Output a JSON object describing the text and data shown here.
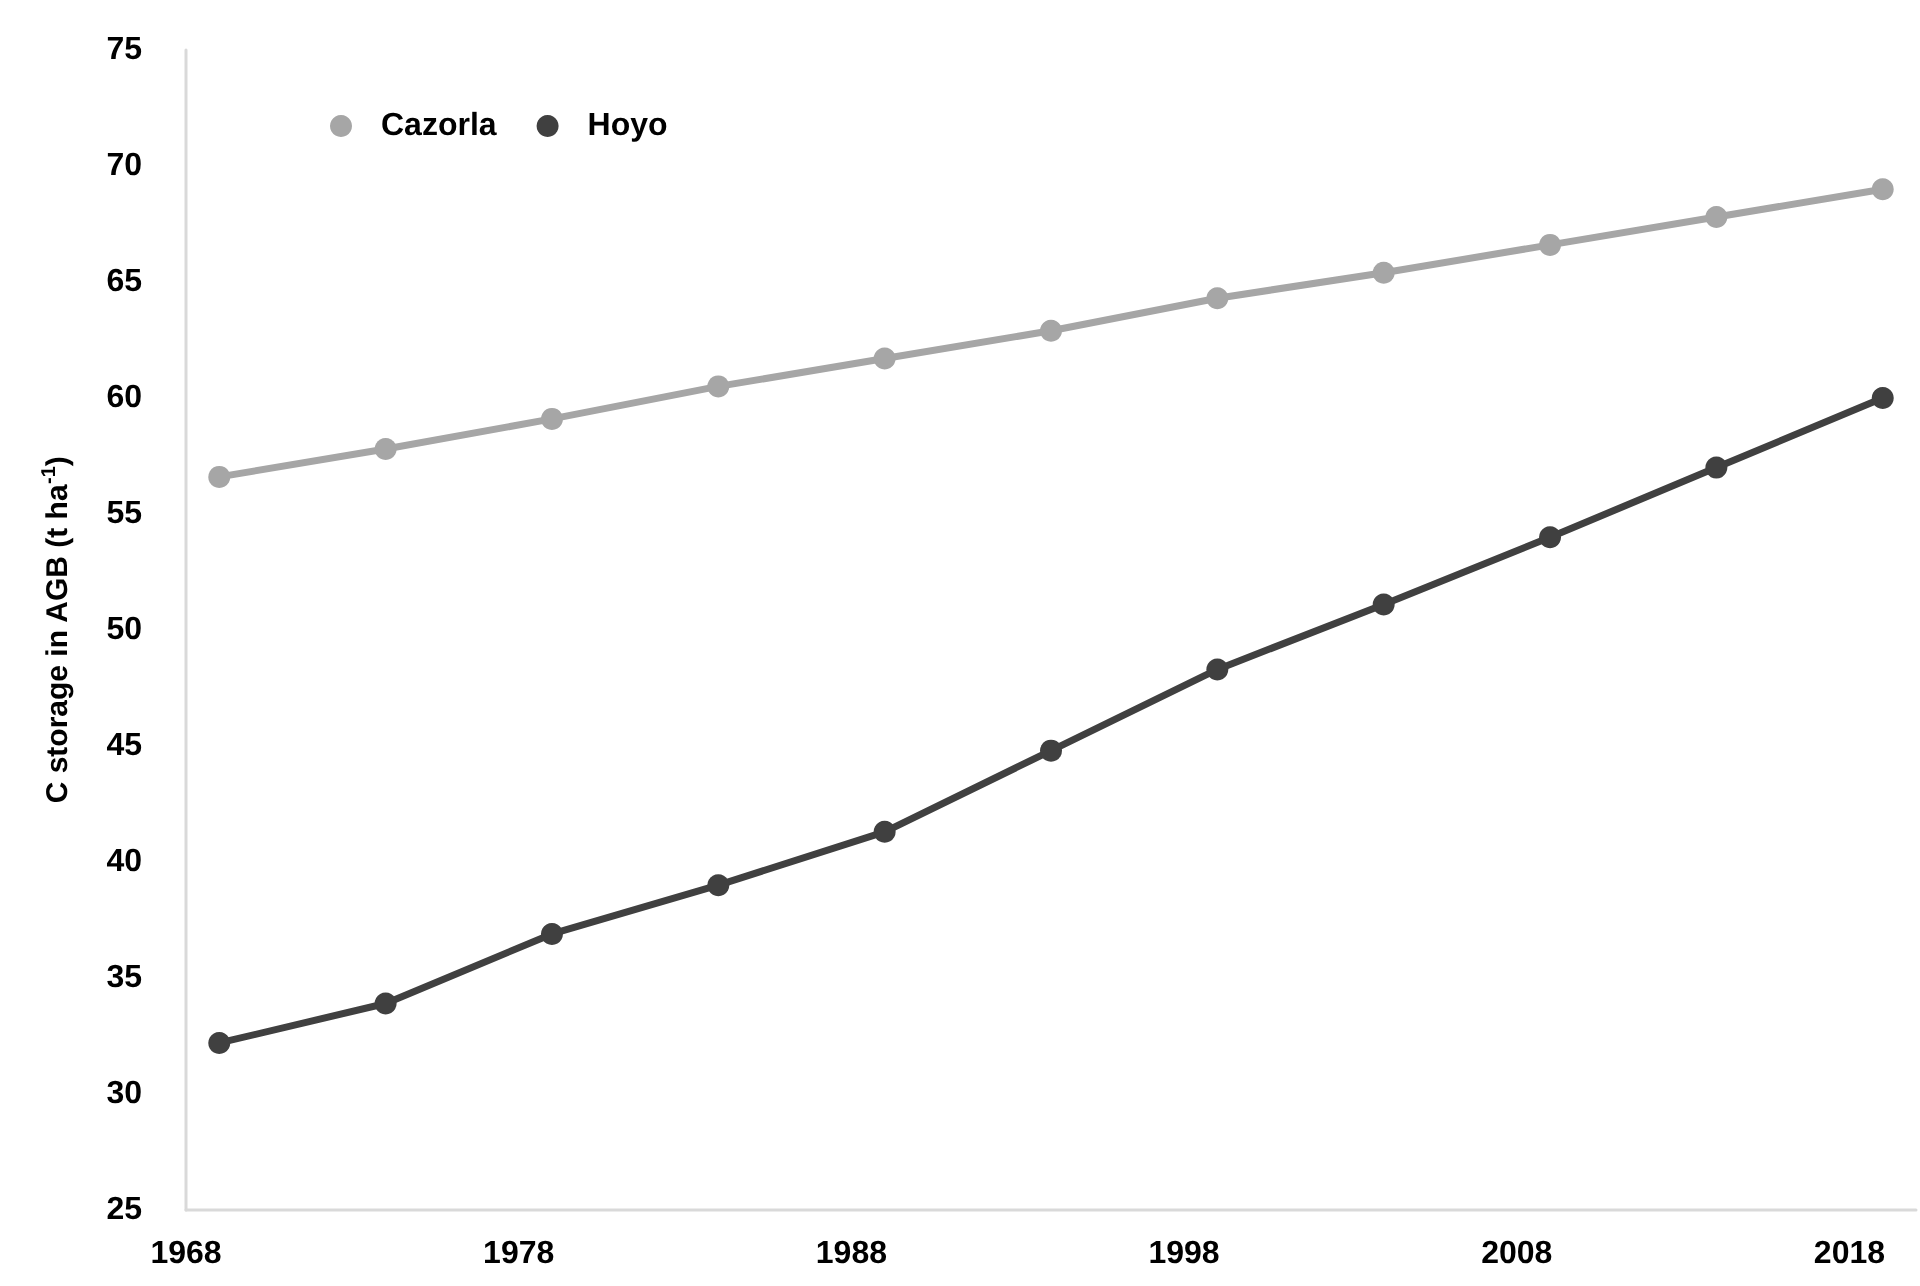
{
  "chart_data": {
    "type": "line",
    "ylabel": "C storage in AGB (t ha$^{-1}$)",
    "x": [
      1969,
      1974,
      1979,
      1984,
      1989,
      1994,
      1999,
      2004,
      2009,
      2014,
      2019
    ],
    "series": [
      {
        "name": "Cazorla",
        "color": "#a6a6a6",
        "values": [
          56.6,
          57.8,
          59.1,
          60.5,
          61.7,
          62.9,
          64.3,
          65.4,
          66.6,
          67.8,
          69.0
        ]
      },
      {
        "name": "Hoyo",
        "color": "#404040",
        "values": [
          32.2,
          33.9,
          36.9,
          39.0,
          41.3,
          44.8,
          48.3,
          51.1,
          54.0,
          57.0,
          60.0
        ]
      }
    ],
    "xlim": [
      1968,
      2020
    ],
    "xticks": [
      1968,
      1978,
      1988,
      1998,
      2008,
      2018
    ],
    "ylim": [
      25,
      75
    ],
    "yticks": [
      25,
      30,
      35,
      40,
      45,
      50,
      55,
      60,
      65,
      70,
      75
    ],
    "grid": false,
    "legend": "top left",
    "marker": "circle",
    "line_style": "solid"
  }
}
